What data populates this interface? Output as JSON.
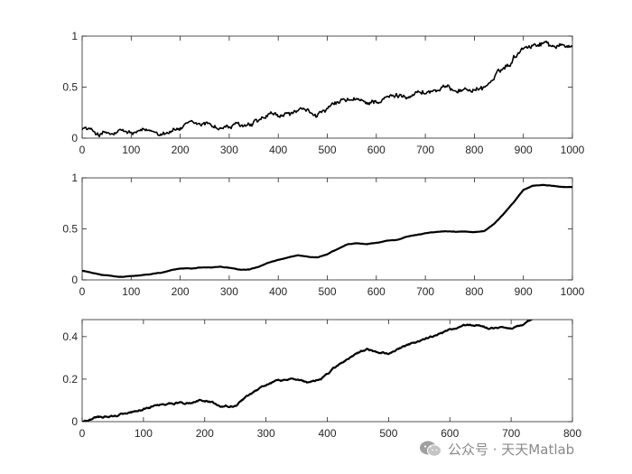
{
  "watermark": {
    "text": "公众号 · 天天Matlab",
    "icon": "wechat-icon"
  },
  "chart_data": [
    {
      "type": "line",
      "title": "",
      "xlabel": "",
      "ylabel": "",
      "xlim": [
        0,
        1000
      ],
      "ylim": [
        0,
        1
      ],
      "xticks": [
        0,
        100,
        200,
        300,
        400,
        500,
        600,
        700,
        800,
        900,
        1000
      ],
      "yticks": [
        0,
        0.5,
        1
      ],
      "ytick_labels": [
        "0",
        "0.5",
        "1"
      ],
      "grid": false,
      "line_color": "#000000",
      "noise": "jagged",
      "series": [
        {
          "x": [
            0,
            10,
            20,
            30,
            40,
            50,
            60,
            70,
            80,
            90,
            100,
            120,
            140,
            160,
            180,
            200,
            220,
            240,
            260,
            280,
            300,
            320,
            340,
            360,
            380,
            400,
            420,
            440,
            460,
            480,
            500,
            520,
            540,
            560,
            580,
            600,
            620,
            640,
            660,
            680,
            700,
            720,
            740,
            760,
            780,
            800,
            820,
            840,
            860,
            870,
            880,
            890,
            900,
            920,
            940,
            960,
            980,
            1000
          ],
          "y": [
            0.11,
            0.09,
            0.07,
            0.05,
            0.04,
            0.05,
            0.03,
            0.04,
            0.06,
            0.05,
            0.04,
            0.05,
            0.06,
            0.06,
            0.08,
            0.1,
            0.12,
            0.12,
            0.14,
            0.1,
            0.11,
            0.12,
            0.1,
            0.15,
            0.21,
            0.2,
            0.23,
            0.26,
            0.24,
            0.24,
            0.27,
            0.33,
            0.37,
            0.36,
            0.34,
            0.37,
            0.39,
            0.41,
            0.43,
            0.45,
            0.45,
            0.47,
            0.49,
            0.48,
            0.48,
            0.48,
            0.5,
            0.58,
            0.68,
            0.72,
            0.79,
            0.85,
            0.91,
            0.92,
            0.94,
            0.92,
            0.9,
            0.91
          ]
        }
      ]
    },
    {
      "type": "line",
      "title": "",
      "xlabel": "",
      "ylabel": "",
      "xlim": [
        0,
        1000
      ],
      "ylim": [
        0,
        1
      ],
      "xticks": [
        0,
        100,
        200,
        300,
        400,
        500,
        600,
        700,
        800,
        900,
        1000
      ],
      "yticks": [
        0,
        0.5,
        1
      ],
      "ytick_labels": [
        "0",
        "0.5",
        "1"
      ],
      "grid": false,
      "line_color": "#000000",
      "noise": "smooth",
      "series": [
        {
          "x": [
            0,
            20,
            40,
            60,
            80,
            100,
            120,
            140,
            160,
            180,
            200,
            220,
            240,
            260,
            280,
            300,
            320,
            340,
            360,
            380,
            400,
            420,
            440,
            460,
            480,
            500,
            520,
            540,
            560,
            580,
            600,
            620,
            640,
            660,
            680,
            700,
            720,
            740,
            760,
            780,
            800,
            820,
            840,
            860,
            880,
            900,
            920,
            940,
            960,
            980,
            1000
          ],
          "y": [
            0.09,
            0.07,
            0.05,
            0.04,
            0.03,
            0.04,
            0.05,
            0.06,
            0.07,
            0.09,
            0.11,
            0.11,
            0.12,
            0.12,
            0.13,
            0.12,
            0.1,
            0.1,
            0.13,
            0.17,
            0.2,
            0.22,
            0.24,
            0.23,
            0.22,
            0.25,
            0.3,
            0.35,
            0.36,
            0.35,
            0.36,
            0.38,
            0.39,
            0.42,
            0.44,
            0.46,
            0.47,
            0.48,
            0.47,
            0.47,
            0.47,
            0.48,
            0.55,
            0.65,
            0.76,
            0.88,
            0.92,
            0.93,
            0.92,
            0.91,
            0.91
          ]
        }
      ]
    },
    {
      "type": "line",
      "title": "",
      "xlabel": "",
      "ylabel": "",
      "xlim": [
        0,
        800
      ],
      "ylim": [
        0,
        0.48
      ],
      "xticks": [
        0,
        100,
        200,
        300,
        400,
        500,
        600,
        700,
        800
      ],
      "yticks": [
        0,
        0.2,
        0.4
      ],
      "ytick_labels": [
        "0",
        "0.2",
        "0.4"
      ],
      "grid": false,
      "line_color": "#000000",
      "noise": "slight",
      "series": [
        {
          "x": [
            0,
            10,
            25,
            50,
            75,
            100,
            120,
            140,
            160,
            180,
            195,
            210,
            230,
            250,
            265,
            280,
            300,
            320,
            345,
            370,
            390,
            410,
            430,
            450,
            465,
            480,
            500,
            520,
            540,
            560,
            580,
            600,
            620,
            640,
            660,
            680,
            700,
            720,
            730,
            740
          ],
          "y": [
            0.0,
            0.01,
            0.02,
            0.025,
            0.04,
            0.06,
            0.075,
            0.085,
            0.09,
            0.09,
            0.1,
            0.095,
            0.07,
            0.075,
            0.11,
            0.14,
            0.17,
            0.19,
            0.2,
            0.18,
            0.2,
            0.25,
            0.29,
            0.32,
            0.34,
            0.33,
            0.32,
            0.345,
            0.37,
            0.39,
            0.41,
            0.43,
            0.45,
            0.455,
            0.44,
            0.44,
            0.44,
            0.45,
            0.47,
            0.49
          ]
        }
      ]
    }
  ]
}
